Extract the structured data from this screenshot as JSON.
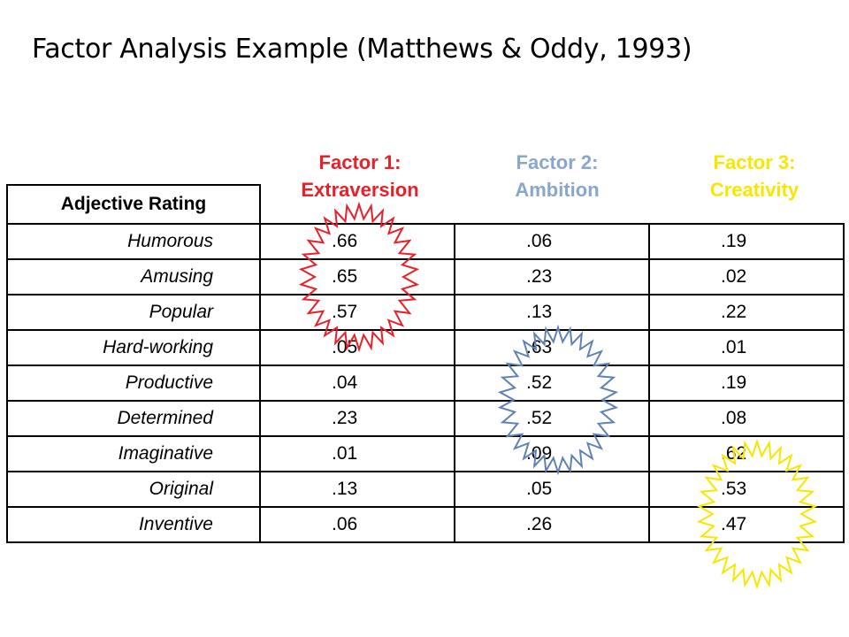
{
  "title": "Factor Analysis Example (Matthews & Oddy, 1993)",
  "factors": [
    {
      "line1": "Factor 1:",
      "line2": "Extraversion",
      "color": "#e8202a"
    },
    {
      "line1": "Factor 2:",
      "line2": "Ambition",
      "color": "#89a6cc"
    },
    {
      "line1": "Factor 3:",
      "line2": "Creativity",
      "color": "#f7e700"
    }
  ],
  "table": {
    "header": "Adjective Rating",
    "rows": [
      {
        "adjective": "Humorous",
        "values": [
          ".66",
          ".06",
          ".19"
        ]
      },
      {
        "adjective": "Amusing",
        "values": [
          ".65",
          ".23",
          ".02"
        ]
      },
      {
        "adjective": "Popular",
        "values": [
          ".57",
          ".13",
          ".22"
        ]
      },
      {
        "adjective": "Hard-working",
        "values": [
          ".05",
          ".63",
          ".01"
        ]
      },
      {
        "adjective": "Productive",
        "values": [
          ".04",
          ".52",
          ".19"
        ]
      },
      {
        "adjective": "Determined",
        "values": [
          ".23",
          ".52",
          ".08"
        ]
      },
      {
        "adjective": "Imaginative",
        "values": [
          ".01",
          ".09",
          ".62"
        ]
      },
      {
        "adjective": "Original",
        "values": [
          ".13",
          ".05",
          ".53"
        ]
      },
      {
        "adjective": "Inventive",
        "values": [
          ".06",
          ".26",
          ".47"
        ]
      }
    ]
  },
  "highlights": [
    {
      "factor": 1,
      "color": "#e8202a"
    },
    {
      "factor": 2,
      "color": "#5f82b5"
    },
    {
      "factor": 3,
      "color": "#f7e700"
    }
  ]
}
